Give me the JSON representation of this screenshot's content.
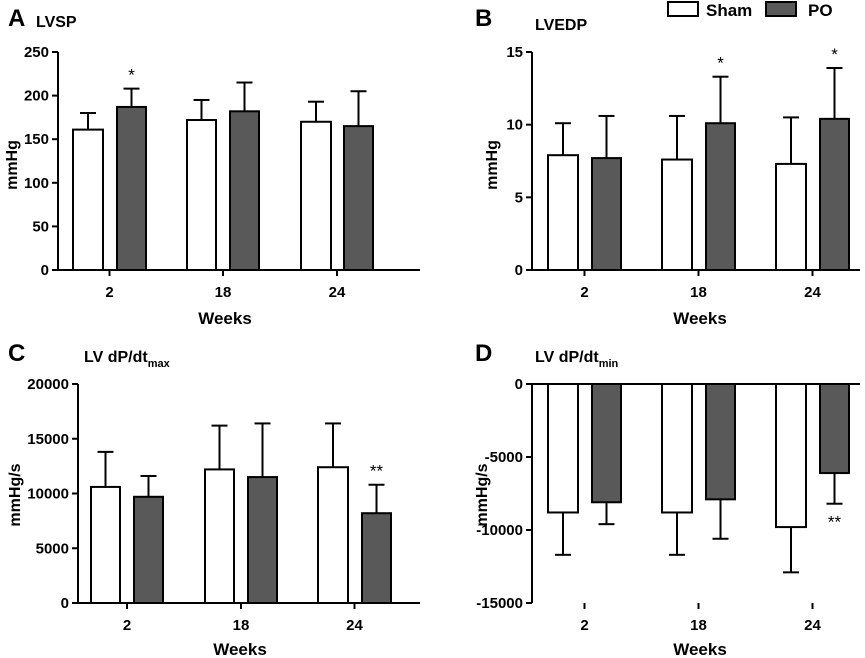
{
  "legend": {
    "entries": [
      {
        "name": "Sham",
        "fill": "#ffffff"
      },
      {
        "name": "PO",
        "fill": "#595959"
      }
    ]
  },
  "chart_data": [
    {
      "panel": "A",
      "type": "bar",
      "title": "LVSP",
      "xlabel": "Weeks",
      "ylabel": "mmHg",
      "categories": [
        "2",
        "18",
        "24"
      ],
      "ylim": [
        0,
        250
      ],
      "yticks": [
        0,
        50,
        100,
        150,
        200,
        250
      ],
      "series": [
        {
          "name": "Sham",
          "values": [
            161,
            172,
            170
          ],
          "errors": [
            19,
            23,
            23
          ]
        },
        {
          "name": "PO",
          "values": [
            187,
            182,
            165
          ],
          "errors": [
            21,
            33,
            40
          ]
        }
      ],
      "annotations": [
        {
          "series": "PO",
          "category": "2",
          "text": "*"
        }
      ]
    },
    {
      "panel": "B",
      "type": "bar",
      "title": "LVEDP",
      "xlabel": "Weeks",
      "ylabel": "mmHg",
      "categories": [
        "2",
        "18",
        "24"
      ],
      "ylim": [
        0,
        15
      ],
      "yticks": [
        0,
        5,
        10,
        15
      ],
      "series": [
        {
          "name": "Sham",
          "values": [
            7.9,
            7.6,
            7.3
          ],
          "errors": [
            2.2,
            3.0,
            3.2
          ]
        },
        {
          "name": "PO",
          "values": [
            7.7,
            10.1,
            10.4
          ],
          "errors": [
            2.9,
            3.2,
            3.5
          ]
        }
      ],
      "annotations": [
        {
          "series": "PO",
          "category": "18",
          "text": "*"
        },
        {
          "series": "PO",
          "category": "24",
          "text": "*"
        }
      ]
    },
    {
      "panel": "C",
      "type": "bar",
      "title_main": "LV dP/dt",
      "title_sub": "max",
      "xlabel": "Weeks",
      "ylabel": "mmHg/s",
      "categories": [
        "2",
        "18",
        "24"
      ],
      "ylim": [
        0,
        20000
      ],
      "yticks": [
        0,
        5000,
        10000,
        15000,
        20000
      ],
      "series": [
        {
          "name": "Sham",
          "values": [
            10600,
            12200,
            12400
          ],
          "errors": [
            3200,
            4000,
            4000
          ]
        },
        {
          "name": "PO",
          "values": [
            9700,
            11500,
            8200
          ],
          "errors": [
            1900,
            4900,
            2600
          ]
        }
      ],
      "annotations": [
        {
          "series": "PO",
          "category": "24",
          "text": "**"
        }
      ]
    },
    {
      "panel": "D",
      "type": "bar",
      "title_main": "LV dP/dt",
      "title_sub": "min",
      "xlabel": "Weeks",
      "ylabel": "mmHg/s",
      "categories": [
        "2",
        "18",
        "24"
      ],
      "ylim": [
        -15000,
        0
      ],
      "yticks": [
        -15000,
        -10000,
        -5000,
        0
      ],
      "series": [
        {
          "name": "Sham",
          "values": [
            -8800,
            -8800,
            -9800
          ],
          "errors": [
            2900,
            2900,
            3100
          ]
        },
        {
          "name": "PO",
          "values": [
            -8100,
            -7900,
            -6100
          ],
          "errors": [
            1500,
            2700,
            2100
          ]
        }
      ],
      "annotations": [
        {
          "series": "PO",
          "category": "24",
          "text": "**"
        }
      ]
    }
  ]
}
